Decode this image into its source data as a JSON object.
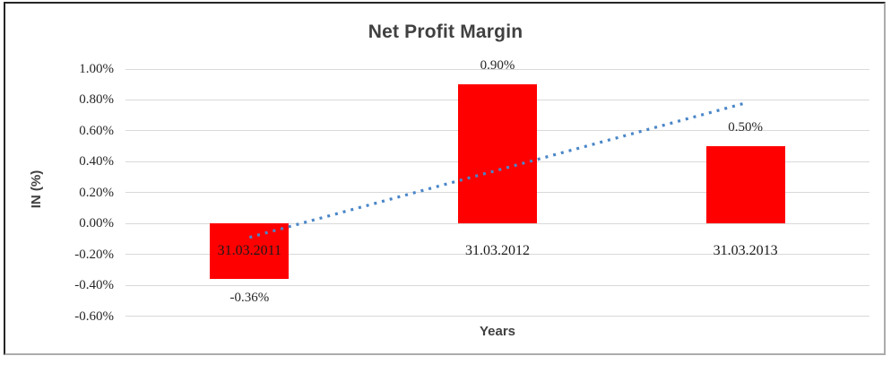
{
  "chart_data": {
    "type": "bar",
    "title": "Net Profit Margin",
    "xlabel": "Years",
    "ylabel": "IN (%)",
    "categories": [
      "31.03.2011",
      "31.03.2012",
      "31.03.2013"
    ],
    "values": [
      -0.36,
      0.9,
      0.5
    ],
    "data_labels": [
      "-0.36%",
      "0.90%",
      "0.50%"
    ],
    "y_ticks": [
      "1.00%",
      "0.80%",
      "0.60%",
      "0.40%",
      "0.20%",
      "0.00%",
      "-0.20%",
      "-0.40%",
      "-0.60%"
    ],
    "y_tick_values": [
      1.0,
      0.8,
      0.6,
      0.4,
      0.2,
      0.0,
      -0.2,
      -0.4,
      -0.6
    ],
    "ylim": [
      -0.6,
      1.0
    ],
    "grid": true,
    "legend": "none",
    "colors": {
      "bar": "#ff0000",
      "trendline": "#4a86c8",
      "gridline": "#d9d9d9",
      "title_text": "#404040",
      "tick_text": "#262626"
    },
    "trendline": {
      "type": "linear",
      "style": "dotted",
      "start_value": -0.09,
      "end_value": 0.78
    }
  }
}
